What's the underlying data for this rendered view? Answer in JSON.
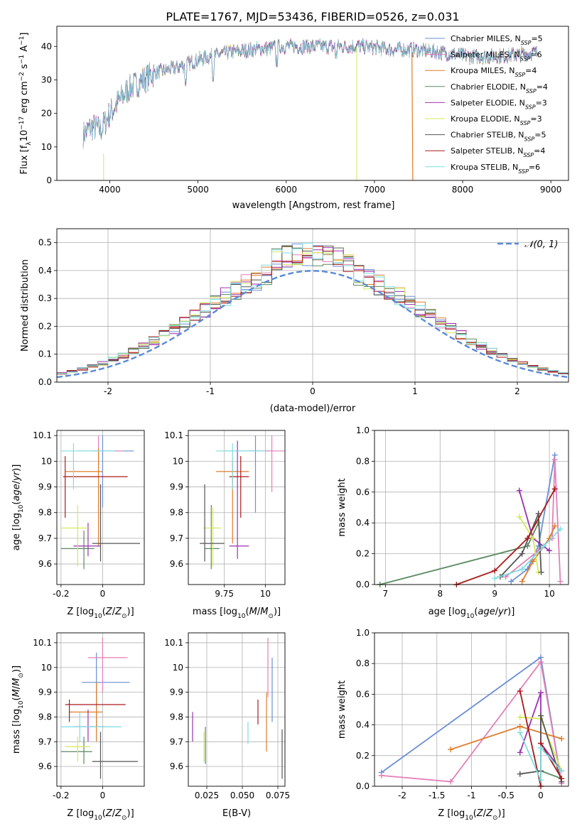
{
  "title": "PLATE=1767, MJD=53436, FIBERID=0526, z=0.031",
  "colors": {
    "Chabrier MILES": "#6b8fd6",
    "Salpeter MILES": "#e37fb8",
    "Kroupa MILES": "#e07b2a",
    "Chabrier ELODIE": "#5a8a60",
    "Salpeter ELODIE": "#9b32b0",
    "Kroupa ELODIE": "#d4e85a",
    "Chabrier STELIB": "#555555",
    "Salpeter STELIB": "#aa1a1a",
    "Kroupa STELIB": "#7fdde0"
  },
  "chart_data": [
    {
      "id": "spectrum",
      "type": "line",
      "xlabel": "wavelength [Angstrom, rest frame]",
      "ylabel": "Flux [f_λ10^-17 erg cm^-2 s^-1 A^-1]",
      "xlim": [
        3400,
        9200
      ],
      "ylim": [
        0,
        46
      ],
      "xticks": [
        4000,
        5000,
        6000,
        7000,
        8000,
        9000
      ],
      "yticks": [
        0,
        10,
        20,
        30,
        40
      ],
      "grid": false,
      "legend_position": "top-right",
      "legend": [
        {
          "label": "Chabrier MILES, N",
          "sub": "SSP",
          "n": "=5"
        },
        {
          "label": "Salpeter MILES, N",
          "sub": "SSP",
          "n": "=6"
        },
        {
          "label": "Kroupa MILES, N",
          "sub": "SSP",
          "n": "=4"
        },
        {
          "label": "Chabrier ELODIE, N",
          "sub": "SSP",
          "n": "=4"
        },
        {
          "label": "Salpeter ELODIE, N",
          "sub": "SSP",
          "n": "=3"
        },
        {
          "label": "Kroupa ELODIE, N",
          "sub": "SSP",
          "n": "=3"
        },
        {
          "label": "Chabrier STELIB, N",
          "sub": "SSP",
          "n": "=5"
        },
        {
          "label": "Salpeter STELIB, N",
          "sub": "SSP",
          "n": "=4"
        },
        {
          "label": "Kroupa STELIB, N",
          "sub": "SSP",
          "n": "=6"
        }
      ],
      "continuum_x": [
        3700,
        3800,
        3900,
        4000,
        4200,
        4500,
        4800,
        5000,
        5300,
        5600,
        6000,
        6300,
        6600,
        6900,
        7200,
        7500,
        7800,
        8100,
        8400,
        8800
      ],
      "continuum_y": [
        14,
        16,
        15,
        20,
        27,
        32,
        34,
        36,
        38,
        39,
        40,
        40,
        40,
        40,
        39,
        39,
        38,
        37,
        37,
        38
      ],
      "dips_x": [
        3930,
        3968,
        4861,
        5175,
        5893,
        6563,
        6800,
        7430
      ],
      "dips_y": [
        0,
        0,
        28,
        30,
        34,
        36,
        0,
        0
      ]
    },
    {
      "id": "residuals",
      "type": "bar",
      "xlabel": "(data-model)/error",
      "ylabel": "Normed distribution",
      "xlim": [
        -2.5,
        2.5
      ],
      "ylim": [
        0,
        0.55
      ],
      "xticks": [
        -2,
        -1,
        0,
        1,
        2
      ],
      "yticks": [
        0.0,
        0.1,
        0.2,
        0.3,
        0.4,
        0.5
      ],
      "grid": true,
      "legend_position": "top-right",
      "legend_label": "𝒩(0, 1)",
      "bin_width": 0.1,
      "gaussian": {
        "mean": 0,
        "sigma": 1
      },
      "series_names": [
        "Chabrier MILES",
        "Salpeter MILES",
        "Kroupa MILES",
        "Chabrier ELODIE",
        "Salpeter ELODIE",
        "Kroupa ELODIE",
        "Chabrier STELIB",
        "Salpeter STELIB",
        "Kroupa STELIB"
      ]
    },
    {
      "id": "age-vs-Z",
      "type": "scatter",
      "xlabel": "Z [log10(Z/Z⊙)]",
      "ylabel": "age  [log10(age/yr)]",
      "xlim": [
        -0.22,
        0.2
      ],
      "ylim": [
        9.52,
        10.12
      ],
      "xticks": [
        -0.2,
        0.0
      ],
      "yticks": [
        9.6,
        9.7,
        9.8,
        9.9,
        10.0,
        10.1
      ],
      "grid": true,
      "points": [
        {
          "s": "Chabrier MILES",
          "x": 0.0,
          "y": 10.04,
          "xe": [
            -0.05,
            0.15
          ],
          "ye": [
            9.82,
            10.1
          ]
        },
        {
          "s": "Salpeter MILES",
          "x": -0.02,
          "y": 10.04,
          "xe": [
            -0.12,
            0.1
          ],
          "ye": [
            9.98,
            10.1
          ]
        },
        {
          "s": "Kroupa MILES",
          "x": -0.02,
          "y": 9.96,
          "xe": [
            -0.18,
            0.0
          ],
          "ye": [
            9.67,
            10.05
          ]
        },
        {
          "s": "Chabrier ELODIE",
          "x": -0.09,
          "y": 9.66,
          "xe": [
            -0.2,
            -0.04
          ],
          "ye": [
            9.58,
            9.73
          ]
        },
        {
          "s": "Salpeter ELODIE",
          "x": -0.07,
          "y": 9.67,
          "xe": [
            -0.14,
            -0.01
          ],
          "ye": [
            9.63,
            9.76
          ]
        },
        {
          "s": "Kroupa ELODIE",
          "x": -0.12,
          "y": 9.74,
          "xe": [
            -0.2,
            -0.07
          ],
          "ye": [
            9.59,
            9.83
          ]
        },
        {
          "s": "Chabrier STELIB",
          "x": -0.01,
          "y": 9.68,
          "xe": [
            -0.05,
            0.18
          ],
          "ye": [
            9.61,
            9.91
          ]
        },
        {
          "s": "Salpeter STELIB",
          "x": -0.18,
          "y": 9.94,
          "xe": [
            -0.19,
            0.12
          ],
          "ye": [
            9.78,
            10.02
          ]
        },
        {
          "s": "Kroupa STELIB",
          "x": -0.14,
          "y": 10.04,
          "xe": [
            -0.2,
            0.06
          ],
          "ye": [
            9.89,
            10.07
          ]
        }
      ]
    },
    {
      "id": "age-vs-mass",
      "type": "scatter",
      "xlabel": "mass [log10(M/M⊙)]",
      "ylabel": "",
      "xlim": [
        9.53,
        10.12
      ],
      "ylim": [
        9.52,
        10.12
      ],
      "xticks": [
        9.75,
        10.0
      ],
      "yticks": [
        9.6,
        9.7,
        9.8,
        9.9,
        10.0,
        10.1
      ],
      "grid": true,
      "points": [
        {
          "s": "Chabrier MILES",
          "x": 9.94,
          "y": 10.04,
          "xe": [
            9.75,
            10.07
          ],
          "ye": [
            9.8,
            10.1
          ]
        },
        {
          "s": "Salpeter MILES",
          "x": 10.04,
          "y": 10.04,
          "xe": [
            9.9,
            10.12
          ],
          "ye": [
            9.88,
            10.1
          ]
        },
        {
          "s": "Kroupa MILES",
          "x": 9.8,
          "y": 9.96,
          "xe": [
            9.7,
            9.9
          ],
          "ye": [
            9.68,
            10.0
          ]
        },
        {
          "s": "Chabrier ELODIE",
          "x": 9.67,
          "y": 9.66,
          "xe": [
            9.63,
            9.72
          ],
          "ye": [
            9.58,
            9.83
          ]
        },
        {
          "s": "Salpeter ELODIE",
          "x": 9.83,
          "y": 9.67,
          "xe": [
            9.78,
            9.9
          ],
          "ye": [
            9.62,
            10.08
          ]
        },
        {
          "s": "Kroupa ELODIE",
          "x": 9.68,
          "y": 9.74,
          "xe": [
            9.62,
            9.73
          ],
          "ye": [
            9.59,
            9.82
          ]
        },
        {
          "s": "Chabrier STELIB",
          "x": 9.63,
          "y": 9.68,
          "xe": [
            9.6,
            9.75
          ],
          "ye": [
            9.61,
            9.91
          ]
        },
        {
          "s": "Salpeter STELIB",
          "x": 9.85,
          "y": 9.94,
          "xe": [
            9.78,
            9.9
          ],
          "ye": [
            9.78,
            10.02
          ]
        },
        {
          "s": "Kroupa STELIB",
          "x": 9.8,
          "y": 10.04,
          "xe": [
            9.7,
            10.0
          ],
          "ye": [
            9.89,
            10.07
          ]
        }
      ]
    },
    {
      "id": "massweight-vs-age",
      "type": "line",
      "xlabel": "age  [log10(age/yr)]",
      "ylabel": "mass weight",
      "xlim": [
        6.8,
        10.35
      ],
      "ylim": [
        0,
        1.0
      ],
      "xticks": [
        7,
        8,
        9,
        10
      ],
      "yticks": [
        0.0,
        0.2,
        0.4,
        0.6,
        0.8,
        1.0
      ],
      "grid": true,
      "series": [
        {
          "name": "Chabrier MILES",
          "x": [
            9.3,
            9.6,
            9.8,
            10.1
          ],
          "y": [
            0.02,
            0.1,
            0.25,
            0.84
          ]
        },
        {
          "name": "Salpeter MILES",
          "x": [
            9.2,
            9.8,
            10.05,
            10.1,
            10.2
          ],
          "y": [
            0.05,
            0.22,
            0.3,
            0.81,
            0.02
          ]
        },
        {
          "name": "Kroupa MILES",
          "x": [
            9.5,
            9.7,
            10.0,
            10.1
          ],
          "y": [
            0.02,
            0.15,
            0.3,
            0.38
          ]
        },
        {
          "name": "Chabrier ELODIE",
          "x": [
            6.9,
            9.6,
            9.8
          ],
          "y": [
            0.0,
            0.25,
            0.4
          ]
        },
        {
          "name": "Salpeter ELODIE",
          "x": [
            9.45,
            9.7,
            10.0
          ],
          "y": [
            0.61,
            0.3,
            0.22
          ]
        },
        {
          "name": "Kroupa ELODIE",
          "x": [
            9.45,
            9.7,
            9.8
          ],
          "y": [
            0.44,
            0.3,
            0.08
          ]
        },
        {
          "name": "Chabrier STELIB",
          "x": [
            9.1,
            9.5,
            9.8,
            9.85
          ],
          "y": [
            0.05,
            0.2,
            0.46,
            0.08
          ]
        },
        {
          "name": "Salpeter STELIB",
          "x": [
            8.3,
            9.0,
            9.6,
            10.1
          ],
          "y": [
            0.0,
            0.09,
            0.3,
            0.62
          ]
        },
        {
          "name": "Kroupa STELIB",
          "x": [
            9.0,
            9.5,
            9.9,
            10.2
          ],
          "y": [
            0.04,
            0.1,
            0.25,
            0.36
          ]
        }
      ]
    },
    {
      "id": "mass-vs-Z",
      "type": "scatter",
      "xlabel": "Z [log10(Z/Z⊙)]",
      "ylabel": "mass [log10(M/M⊙)]",
      "xlim": [
        -0.22,
        0.2
      ],
      "ylim": [
        9.52,
        10.14
      ],
      "xticks": [
        -0.2,
        0.0
      ],
      "yticks": [
        9.6,
        9.7,
        9.8,
        9.9,
        10.0,
        10.1
      ],
      "grid": true,
      "points": [
        {
          "s": "Chabrier MILES",
          "x": -0.03,
          "y": 9.94,
          "xe": [
            -0.1,
            0.13
          ],
          "ye": [
            9.76,
            10.06
          ]
        },
        {
          "s": "Salpeter MILES",
          "x": 0.0,
          "y": 10.04,
          "xe": [
            -0.07,
            0.12
          ],
          "ye": [
            9.9,
            10.12
          ]
        },
        {
          "s": "Kroupa MILES",
          "x": -0.03,
          "y": 9.82,
          "xe": [
            -0.16,
            0.0
          ],
          "ye": [
            9.7,
            9.94
          ]
        },
        {
          "s": "Chabrier ELODIE",
          "x": -0.09,
          "y": 9.66,
          "xe": [
            -0.2,
            -0.05
          ],
          "ye": [
            9.61,
            9.72
          ]
        },
        {
          "s": "Salpeter ELODIE",
          "x": -0.07,
          "y": 9.76,
          "xe": [
            -0.14,
            0.01
          ],
          "ye": [
            9.7,
            9.83
          ]
        },
        {
          "s": "Kroupa ELODIE",
          "x": -0.12,
          "y": 9.68,
          "xe": [
            -0.18,
            -0.06
          ],
          "ye": [
            9.62,
            9.72
          ]
        },
        {
          "s": "Chabrier STELIB",
          "x": -0.01,
          "y": 9.62,
          "xe": [
            -0.05,
            0.17
          ],
          "ye": [
            9.55,
            9.74
          ]
        },
        {
          "s": "Salpeter STELIB",
          "x": -0.16,
          "y": 9.85,
          "xe": [
            -0.18,
            0.11
          ],
          "ye": [
            9.78,
            9.87
          ]
        },
        {
          "s": "Kroupa STELIB",
          "x": -0.11,
          "y": 9.76,
          "xe": [
            -0.2,
            0.09
          ],
          "ye": [
            9.7,
            9.82
          ]
        }
      ]
    },
    {
      "id": "mass-vs-EBV",
      "type": "scatter",
      "xlabel": "E(B-V)",
      "ylabel": "",
      "xlim": [
        0.012,
        0.08
      ],
      "ylim": [
        9.52,
        10.14
      ],
      "xticks": [
        0.025,
        0.05,
        0.075
      ],
      "xtick_labels": [
        "0.025",
        "0.050",
        "0.075"
      ],
      "yticks": [
        9.6,
        9.7,
        9.8,
        9.9,
        10.0,
        10.1
      ],
      "grid": true,
      "points": [
        {
          "s": "Chabrier MILES",
          "x": 0.071,
          "y": 9.94,
          "xe": [
            0.071,
            0.071
          ],
          "ye": [
            9.78,
            10.04
          ]
        },
        {
          "s": "Salpeter MILES",
          "x": 0.068,
          "y": 10.04,
          "xe": [
            0.068,
            0.068
          ],
          "ye": [
            9.88,
            10.12
          ]
        },
        {
          "s": "Kroupa MILES",
          "x": 0.067,
          "y": 9.82,
          "xe": [
            0.067,
            0.067
          ],
          "ye": [
            9.66,
            9.9
          ]
        },
        {
          "s": "Chabrier ELODIE",
          "x": 0.024,
          "y": 9.66,
          "xe": [
            0.024,
            0.024
          ],
          "ye": [
            9.61,
            9.76
          ]
        },
        {
          "s": "Salpeter ELODIE",
          "x": 0.015,
          "y": 9.76,
          "xe": [
            0.015,
            0.015
          ],
          "ye": [
            9.7,
            9.82
          ]
        },
        {
          "s": "Kroupa ELODIE",
          "x": 0.023,
          "y": 9.68,
          "xe": [
            0.023,
            0.023
          ],
          "ye": [
            9.62,
            9.74
          ]
        },
        {
          "s": "Chabrier STELIB",
          "x": 0.078,
          "y": 9.62,
          "xe": [
            0.078,
            0.078
          ],
          "ye": [
            9.55,
            9.75
          ]
        },
        {
          "s": "Salpeter STELIB",
          "x": 0.061,
          "y": 9.82,
          "xe": [
            0.061,
            0.061
          ],
          "ye": [
            9.77,
            9.87
          ]
        },
        {
          "s": "Kroupa STELIB",
          "x": 0.054,
          "y": 9.74,
          "xe": [
            0.054,
            0.054
          ],
          "ye": [
            9.69,
            9.78
          ]
        }
      ]
    },
    {
      "id": "massweight-vs-Z",
      "type": "line",
      "xlabel": "Z [log10(Z/Z⊙)]",
      "ylabel": "mass weight",
      "xlim": [
        -2.4,
        0.4
      ],
      "ylim": [
        0,
        1.0
      ],
      "xticks": [
        -2.0,
        -1.5,
        -1.0,
        -0.5,
        0.0
      ],
      "yticks": [
        0.0,
        0.2,
        0.4,
        0.6,
        0.8,
        1.0
      ],
      "grid": true,
      "series": [
        {
          "name": "Chabrier MILES",
          "x": [
            -2.3,
            0.0,
            0.3
          ],
          "y": [
            0.09,
            0.84,
            0.02
          ]
        },
        {
          "name": "Salpeter MILES",
          "x": [
            -2.3,
            -1.3,
            0.0,
            0.3
          ],
          "y": [
            0.07,
            0.03,
            0.81,
            0.02
          ]
        },
        {
          "name": "Kroupa MILES",
          "x": [
            -1.3,
            -0.3,
            0.3
          ],
          "y": [
            0.24,
            0.39,
            0.31
          ]
        },
        {
          "name": "Chabrier ELODIE",
          "x": [
            0.0,
            0.3
          ],
          "y": [
            0.1,
            0.05
          ]
        },
        {
          "name": "Salpeter ELODIE",
          "x": [
            -0.3,
            0.0,
            0.0,
            0.3
          ],
          "y": [
            0.22,
            0.61,
            0.28,
            0.1
          ]
        },
        {
          "name": "Kroupa ELODIE",
          "x": [
            -0.3,
            0.0,
            0.3
          ],
          "y": [
            0.45,
            0.44,
            0.1
          ]
        },
        {
          "name": "Chabrier STELIB",
          "x": [
            -0.3,
            0.0,
            0.0,
            0.3
          ],
          "y": [
            0.08,
            0.1,
            0.46,
            0.03
          ]
        },
        {
          "name": "Salpeter STELIB",
          "x": [
            -0.3,
            0.0,
            0.0,
            0.3
          ],
          "y": [
            0.62,
            0.0,
            0.28,
            0.05
          ]
        },
        {
          "name": "Kroupa STELIB",
          "x": [
            -0.3,
            0.0,
            0.0,
            0.3
          ],
          "y": [
            0.35,
            0.04,
            0.25,
            0.1
          ]
        }
      ]
    }
  ]
}
